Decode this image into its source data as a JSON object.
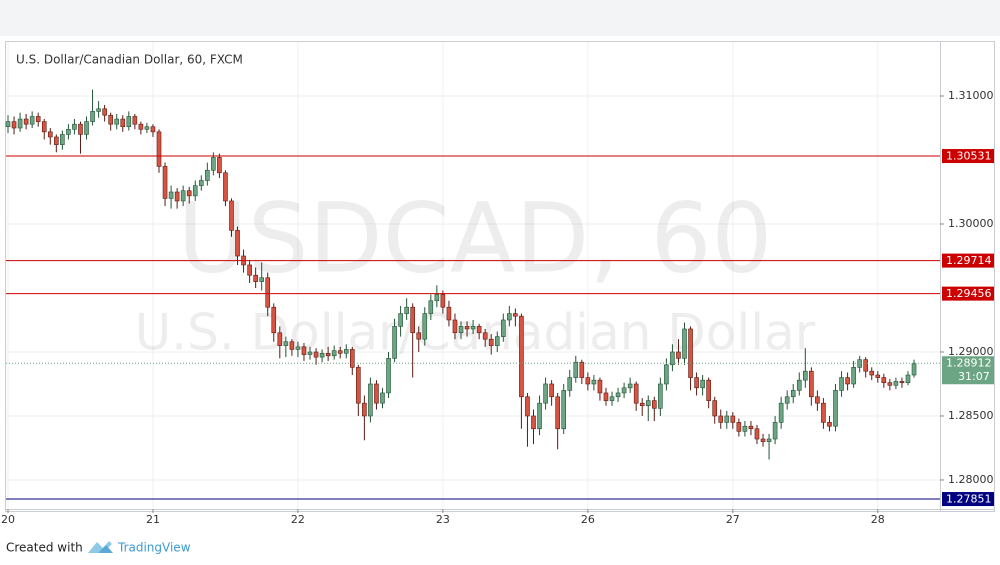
{
  "chart_data": {
    "type": "candlestick",
    "title": "U.S. Dollar/Canadian Dollar, 60, FXCM",
    "watermark": {
      "symbol": "USDCAD, 60",
      "name": "U.S. Dollar/Canadian Dollar"
    },
    "open": [
      1.3076,
      1.308,
      1.3075,
      1.3082,
      1.3078,
      1.3084,
      1.308,
      1.3072,
      1.3068,
      1.3062,
      1.307,
      1.3074,
      1.3078,
      1.307,
      1.308,
      1.3088,
      1.309,
      1.3085,
      1.3078,
      1.3082,
      1.3076,
      1.3084,
      1.3078,
      1.3074,
      1.3076,
      1.3072,
      1.3045,
      1.302,
      1.3025,
      1.3018,
      1.3026,
      1.3022,
      1.303,
      1.3034,
      1.3042,
      1.3052,
      1.304,
      1.3018,
      1.2995,
      1.2975,
      1.2968,
      1.296,
      1.2955,
      1.2958,
      1.2935,
      1.2915,
      1.2905,
      1.2908,
      1.2902,
      1.2904,
      1.2898,
      1.29,
      1.2896,
      1.2899,
      1.2897,
      1.2901,
      1.2899,
      1.2902,
      1.2888,
      1.286,
      1.285,
      1.2875,
      1.286,
      1.2868,
      1.2895,
      1.292,
      1.293,
      1.2935,
      1.2915,
      1.291,
      1.293,
      1.294,
      1.2945,
      1.2935,
      1.2925,
      1.2915,
      1.292,
      1.2918,
      1.292,
      1.2915,
      1.291,
      1.2905,
      1.2912,
      1.2925,
      1.293,
      1.2928,
      1.2865,
      1.285,
      1.284,
      1.286,
      1.2875,
      1.2865,
      1.284,
      1.287,
      1.288,
      1.2892,
      1.288,
      1.2875,
      1.2878,
      1.2868,
      1.2862,
      1.2865,
      1.2868,
      1.2872,
      1.2875,
      1.286,
      1.2858,
      1.2862,
      1.2856,
      1.2875,
      1.289,
      1.29,
      1.2895,
      1.2918,
      1.288,
      1.2872,
      1.2878,
      1.2862,
      1.285,
      1.2845,
      1.285,
      1.2845,
      1.2838,
      1.2842,
      1.284,
      1.2832,
      1.283,
      1.2832,
      1.2845,
      1.286,
      1.2865,
      1.287,
      1.2878,
      1.2885,
      1.2865,
      1.286,
      1.2845,
      1.2842,
      1.287,
      1.288,
      1.2875,
      1.2888,
      1.2894,
      1.2885,
      1.2882,
      1.288,
      1.2876,
      1.2874,
      1.2877,
      1.2876,
      1.2882
    ],
    "high": [
      1.3085,
      1.3084,
      1.3087,
      1.3086,
      1.3088,
      1.3087,
      1.3082,
      1.3075,
      1.307,
      1.3073,
      1.3078,
      1.3082,
      1.308,
      1.3084,
      1.3105,
      1.3096,
      1.3093,
      1.3087,
      1.3086,
      1.3085,
      1.3088,
      1.3086,
      1.308,
      1.3079,
      1.3078,
      1.3074,
      1.3048,
      1.303,
      1.3028,
      1.303,
      1.3029,
      1.3034,
      1.3038,
      1.3048,
      1.3056,
      1.3055,
      1.3042,
      1.302,
      1.2998,
      1.298,
      1.2972,
      1.2966,
      1.297,
      1.2962,
      1.2938,
      1.292,
      1.2912,
      1.291,
      1.2908,
      1.2907,
      1.2904,
      1.2903,
      1.2902,
      1.2904,
      1.2905,
      1.2904,
      1.2906,
      1.2904,
      1.289,
      1.2866,
      1.288,
      1.2878,
      1.2872,
      1.29,
      1.2926,
      1.2936,
      1.2942,
      1.2938,
      1.292,
      1.2935,
      1.2945,
      1.2952,
      1.2948,
      1.294,
      1.293,
      1.2924,
      1.2924,
      1.2925,
      1.2922,
      1.2918,
      1.2914,
      1.2916,
      1.293,
      1.2936,
      1.2934,
      1.293,
      1.2868,
      1.2855,
      1.2866,
      1.288,
      1.2878,
      1.2868,
      1.2875,
      1.2886,
      1.2897,
      1.2894,
      1.2884,
      1.2882,
      1.288,
      1.2872,
      1.2869,
      1.2872,
      1.2876,
      1.288,
      1.2877,
      1.2864,
      1.2866,
      1.2865,
      1.288,
      1.2895,
      1.2906,
      1.291,
      1.2923,
      1.292,
      1.2884,
      1.2882,
      1.288,
      1.2865,
      1.2855,
      1.2854,
      1.2853,
      1.2848,
      1.2846,
      1.2846,
      1.2843,
      1.2836,
      1.2836,
      1.285,
      1.2865,
      1.287,
      1.2875,
      1.2884,
      1.2903,
      1.2888,
      1.287,
      1.2864,
      1.285,
      1.2875,
      1.2885,
      1.2884,
      1.2893,
      1.2897,
      1.2896,
      1.2888,
      1.2885,
      1.2883,
      1.2879,
      1.288,
      1.288,
      1.2885,
      1.2894
    ],
    "low": [
      1.3071,
      1.307,
      1.3072,
      1.3074,
      1.3075,
      1.3076,
      1.3066,
      1.3062,
      1.3056,
      1.3058,
      1.3066,
      1.307,
      1.3055,
      1.3066,
      1.3077,
      1.3083,
      1.308,
      1.3073,
      1.3074,
      1.3072,
      1.3073,
      1.3074,
      1.307,
      1.3071,
      1.3068,
      1.304,
      1.3014,
      1.3012,
      1.3012,
      1.3014,
      1.3016,
      1.3018,
      1.3026,
      1.303,
      1.3038,
      1.3036,
      1.3014,
      1.299,
      1.2968,
      1.2962,
      1.2954,
      1.295,
      1.2948,
      1.2928,
      1.2908,
      1.2895,
      1.2896,
      1.2897,
      1.2896,
      1.2893,
      1.2894,
      1.289,
      1.2892,
      1.2893,
      1.2894,
      1.2895,
      1.2895,
      1.2882,
      1.285,
      1.2831,
      1.2845,
      1.2855,
      1.2856,
      1.2864,
      1.2892,
      1.2912,
      1.2925,
      1.288,
      1.29,
      1.2905,
      1.2925,
      1.2935,
      1.293,
      1.292,
      1.291,
      1.291,
      1.2912,
      1.2914,
      1.291,
      1.2904,
      1.2898,
      1.29,
      1.2908,
      1.292,
      1.292,
      1.284,
      1.2826,
      1.2828,
      1.2835,
      1.2855,
      1.2858,
      1.2824,
      1.2836,
      1.2865,
      1.2876,
      1.2875,
      1.287,
      1.287,
      1.2862,
      1.2858,
      1.2858,
      1.2861,
      1.2864,
      1.2868,
      1.2854,
      1.285,
      1.2846,
      1.2846,
      1.285,
      1.287,
      1.2885,
      1.289,
      1.289,
      1.287,
      1.2866,
      1.2866,
      1.2856,
      1.2844,
      1.284,
      1.284,
      1.284,
      1.2834,
      1.2834,
      1.2835,
      1.2828,
      1.2826,
      1.2816,
      1.2828,
      1.284,
      1.2855,
      1.286,
      1.2866,
      1.2872,
      1.2858,
      1.2854,
      1.284,
      1.2838,
      1.2838,
      1.2865,
      1.287,
      1.2872,
      1.2884,
      1.288,
      1.2878,
      1.2876,
      1.2872,
      1.287,
      1.2871,
      1.2872,
      1.2874,
      1.288
    ],
    "close": [
      1.308,
      1.3075,
      1.3082,
      1.3078,
      1.3084,
      1.308,
      1.3072,
      1.3068,
      1.3062,
      1.307,
      1.3074,
      1.3078,
      1.307,
      1.308,
      1.3088,
      1.309,
      1.3085,
      1.3078,
      1.3082,
      1.3076,
      1.3084,
      1.3078,
      1.3074,
      1.3076,
      1.3072,
      1.3045,
      1.302,
      1.3025,
      1.3018,
      1.3026,
      1.3022,
      1.303,
      1.3034,
      1.3042,
      1.3052,
      1.304,
      1.3018,
      1.2995,
      1.2975,
      1.2968,
      1.296,
      1.2955,
      1.2958,
      1.2935,
      1.2915,
      1.2905,
      1.2908,
      1.2902,
      1.2904,
      1.2898,
      1.29,
      1.2896,
      1.2899,
      1.2897,
      1.2901,
      1.2899,
      1.2902,
      1.2888,
      1.286,
      1.285,
      1.2875,
      1.286,
      1.2868,
      1.2895,
      1.292,
      1.293,
      1.2935,
      1.2915,
      1.291,
      1.293,
      1.294,
      1.2945,
      1.2935,
      1.2925,
      1.2915,
      1.292,
      1.2918,
      1.292,
      1.2915,
      1.291,
      1.2905,
      1.2912,
      1.2925,
      1.293,
      1.2928,
      1.2865,
      1.285,
      1.284,
      1.286,
      1.2875,
      1.2865,
      1.284,
      1.287,
      1.288,
      1.2892,
      1.288,
      1.2875,
      1.2878,
      1.2868,
      1.2862,
      1.2865,
      1.2868,
      1.2872,
      1.2875,
      1.286,
      1.2858,
      1.2862,
      1.2856,
      1.2875,
      1.289,
      1.29,
      1.2895,
      1.2918,
      1.288,
      1.2872,
      1.2878,
      1.2862,
      1.285,
      1.2845,
      1.285,
      1.2845,
      1.2838,
      1.2842,
      1.284,
      1.2832,
      1.283,
      1.2832,
      1.2845,
      1.286,
      1.2865,
      1.287,
      1.2878,
      1.2885,
      1.2865,
      1.286,
      1.2845,
      1.2842,
      1.287,
      1.288,
      1.2875,
      1.2888,
      1.2894,
      1.2885,
      1.2882,
      1.288,
      1.2876,
      1.2874,
      1.2877,
      1.2876,
      1.2882,
      1.2891
    ],
    "up_color": "#6ba583",
    "down_color": "#d75442",
    "xlim": [
      0,
      154.3
    ],
    "xticks": [
      {
        "value": 0,
        "label": "20"
      },
      {
        "value": 24,
        "label": "21"
      },
      {
        "value": 48,
        "label": "22"
      },
      {
        "value": 72,
        "label": "23"
      },
      {
        "value": 96,
        "label": "26"
      },
      {
        "value": 120,
        "label": "27"
      },
      {
        "value": 144,
        "label": "28"
      }
    ],
    "ylim": [
      1.27781,
      1.31422
    ],
    "yticks": [
      {
        "value": 1.28,
        "label": "1.28000"
      },
      {
        "value": 1.285,
        "label": "1.28500"
      },
      {
        "value": 1.29,
        "label": "1.29000"
      },
      {
        "value": 1.3,
        "label": "1.30000"
      },
      {
        "value": 1.31,
        "label": "1.31000"
      }
    ],
    "grid": true,
    "levels": [
      {
        "price": 1.30531,
        "color": "#cc0000"
      },
      {
        "price": 1.29714,
        "color": "#cc0000"
      },
      {
        "price": 1.29456,
        "color": "#cc0000"
      },
      {
        "price": 1.27851,
        "color": "#000080"
      }
    ],
    "current": {
      "price": 1.28912,
      "countdown": "31:07",
      "color": "#6ba583"
    }
  },
  "footer": {
    "created": "Created with",
    "brand": "TradingView"
  }
}
